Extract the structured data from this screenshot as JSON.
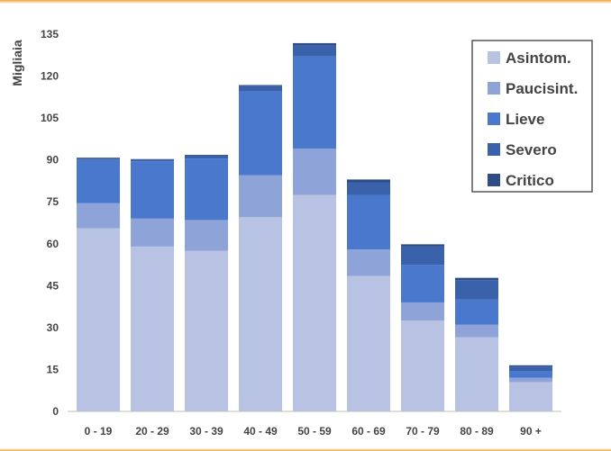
{
  "chart_data": {
    "type": "bar",
    "stacked": true,
    "ylabel": "Migliaia",
    "xlabel": "",
    "ylim": [
      0,
      135
    ],
    "yticks": [
      0,
      15,
      30,
      45,
      60,
      75,
      90,
      105,
      120,
      135
    ],
    "grid": false,
    "legend_position": "top-right",
    "categories": [
      "0 - 19",
      "20 - 29",
      "30 - 39",
      "40 - 49",
      "50 - 59",
      "60 - 69",
      "70 - 79",
      "80 - 89",
      "90 +"
    ],
    "series": [
      {
        "name": "Asintom.",
        "color": "#b8c2e3",
        "values": [
          65.5,
          59,
          57.5,
          69.5,
          77.5,
          48.5,
          32.5,
          26.5,
          10.5
        ]
      },
      {
        "name": "Paucisint.",
        "color": "#8ea3d7",
        "values": [
          9,
          10,
          11,
          15,
          16.5,
          9.5,
          6.5,
          4.5,
          1.5
        ]
      },
      {
        "name": "Lieve",
        "color": "#4a78cc",
        "values": [
          15.5,
          20.5,
          22,
          30,
          33,
          19.5,
          13.5,
          9,
          2.5
        ]
      },
      {
        "name": "Severo",
        "color": "#3a62aa",
        "values": [
          0.5,
          0.5,
          1,
          2,
          4,
          4.5,
          6.5,
          7,
          1.5
        ]
      },
      {
        "name": "Critico",
        "color": "#2f4c86",
        "values": [
          0.3,
          0.3,
          0.3,
          0.3,
          0.8,
          1,
          0.8,
          0.8,
          0.5
        ]
      }
    ]
  }
}
